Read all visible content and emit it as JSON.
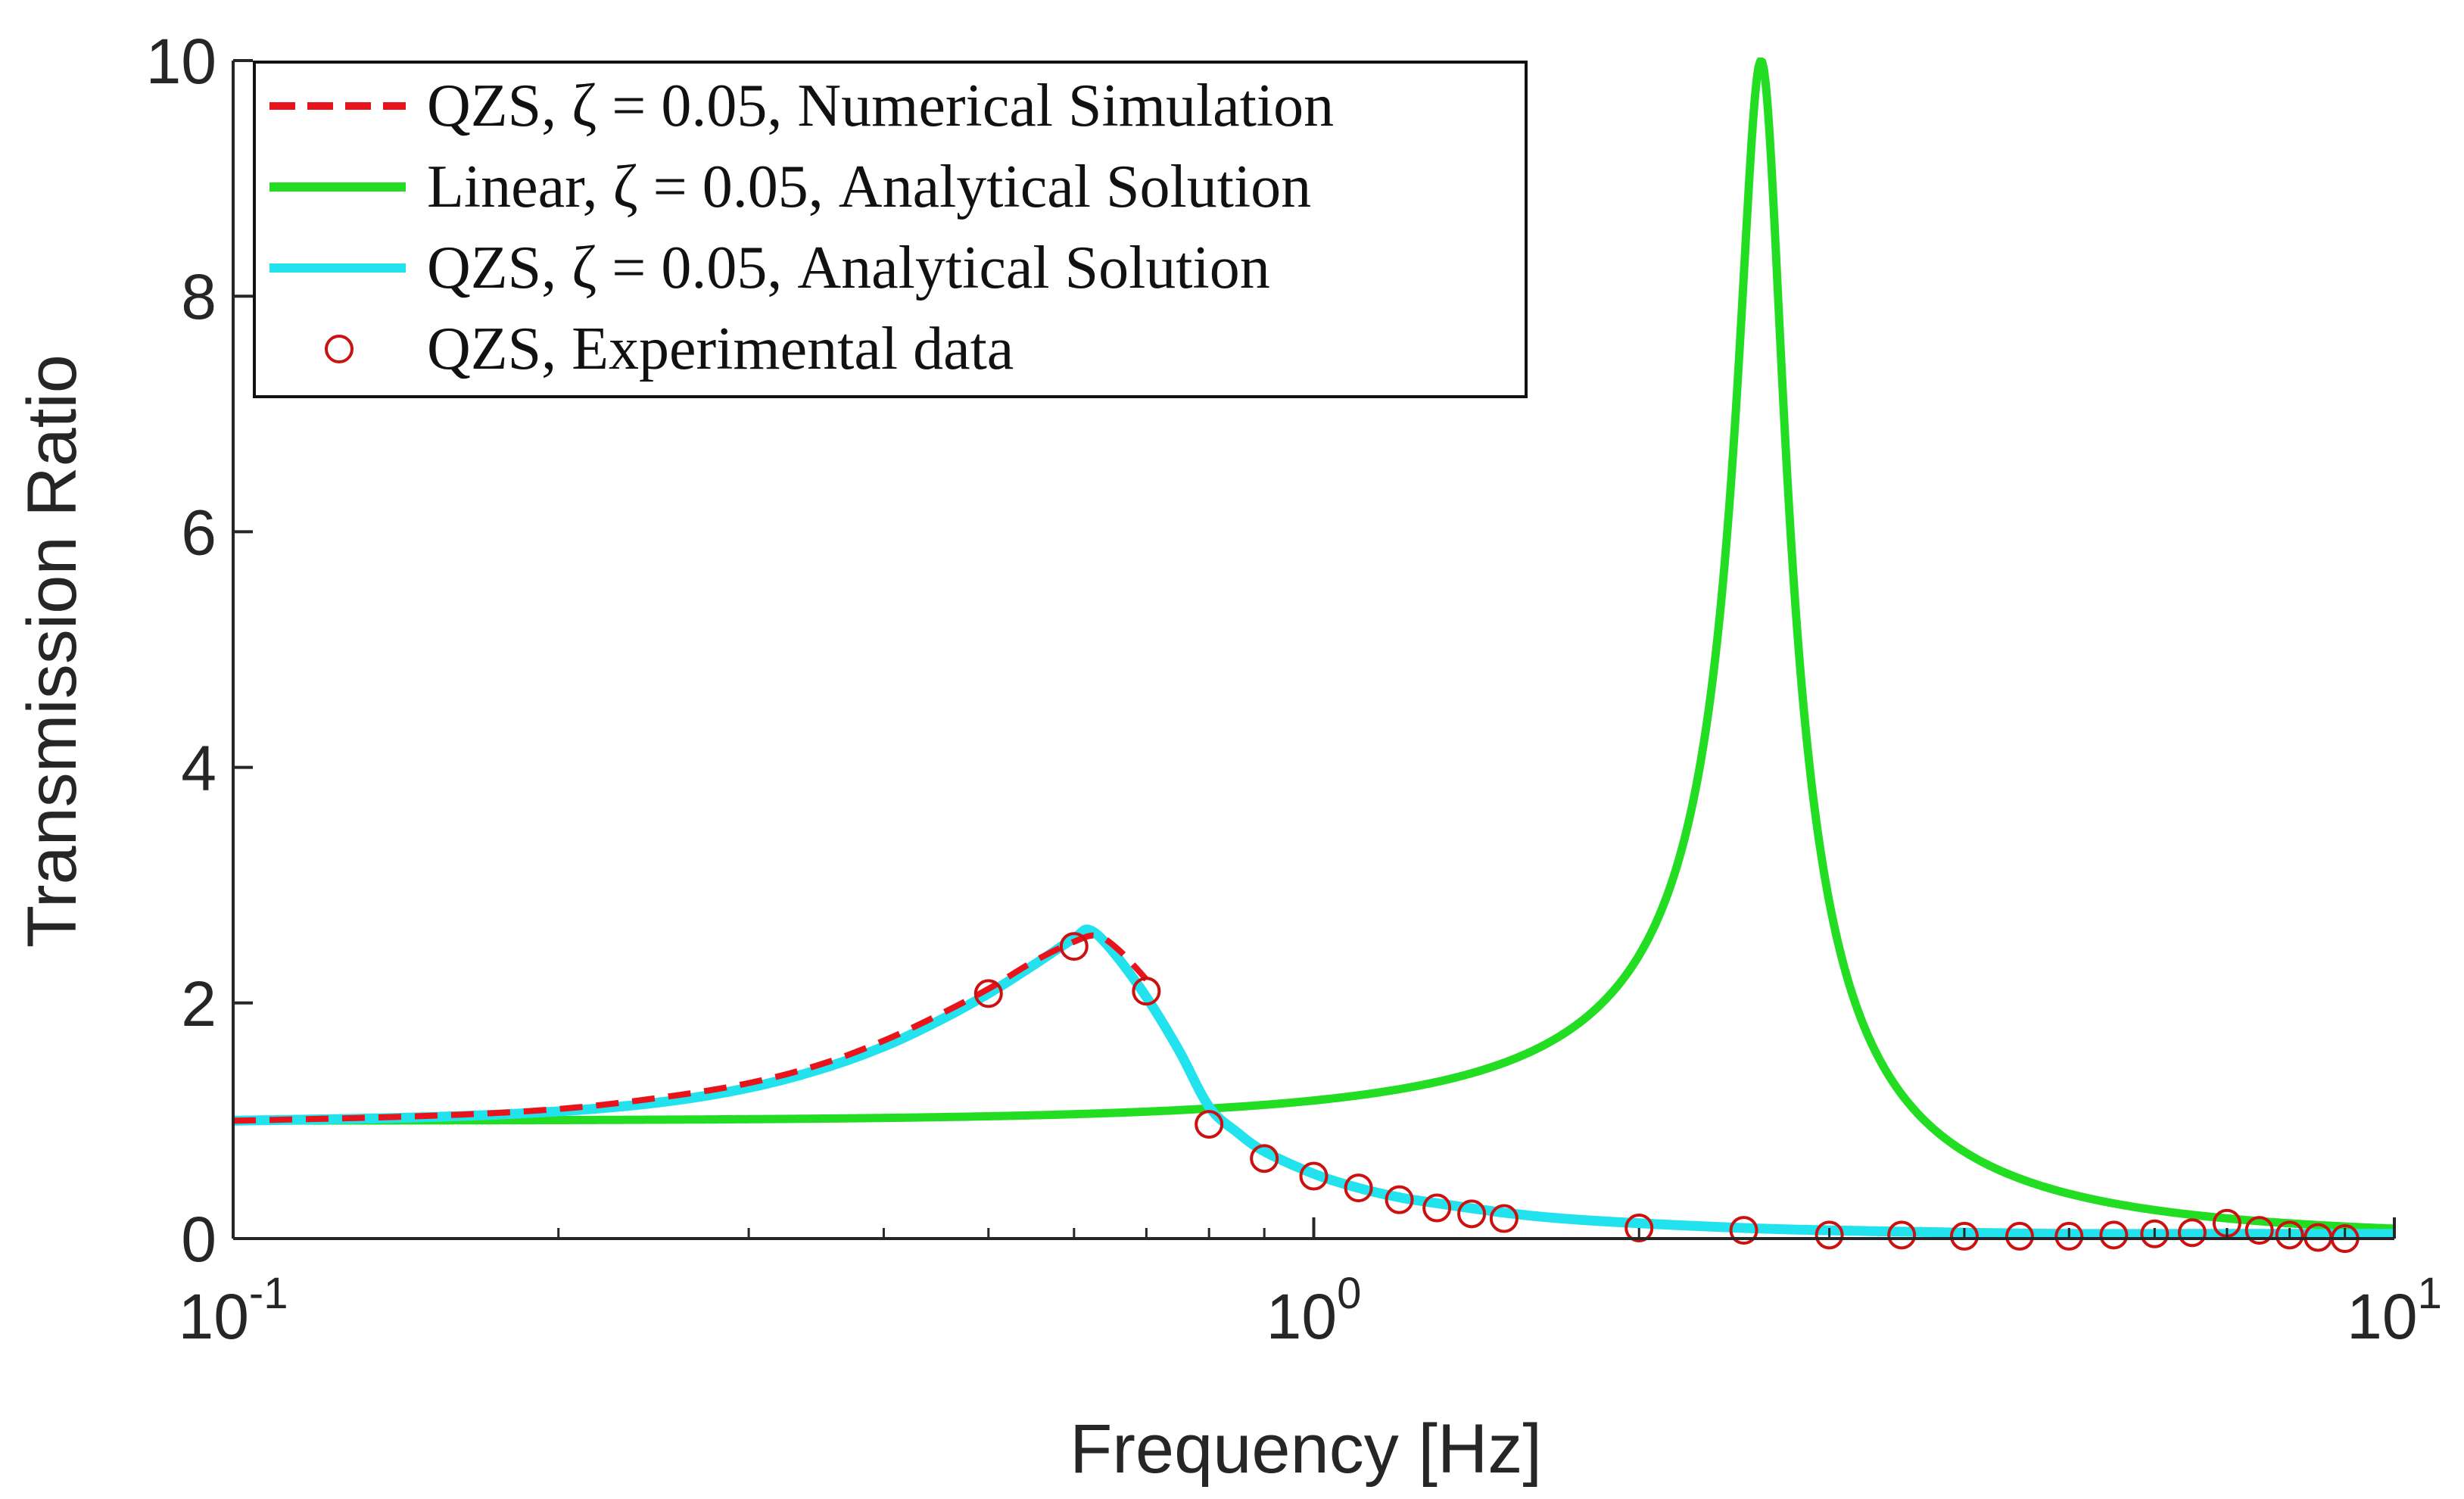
{
  "chart_data": {
    "type": "line",
    "title": "",
    "xlabel": "Frequency [Hz]",
    "ylabel": "Transmission Ratio",
    "xscale": "log",
    "xlim": [
      0.1,
      10
    ],
    "ylim": [
      0,
      10
    ],
    "y_ticks": [
      0,
      2,
      4,
      6,
      8,
      10
    ],
    "y_tick_labels": [
      "0",
      "2",
      "4",
      "6",
      "8",
      "10"
    ],
    "x_ticks": [
      0.1,
      1,
      10
    ],
    "x_tick_labels": [
      {
        "base": "10",
        "exp": "-1"
      },
      {
        "base": "10",
        "exp": "0"
      },
      {
        "base": "10",
        "exp": "1"
      }
    ],
    "grid": false,
    "legend_position": "top-left",
    "colors": {
      "numerical": "#e8141c",
      "linear": "#22dd22",
      "qzs_analytical": "#22e2ee",
      "experimental": "#cc1111",
      "axis": "#262626"
    },
    "legend": [
      {
        "id": "numerical",
        "label": "QZS, ζ = 0.05, Numerical Simulation",
        "style": "dashed"
      },
      {
        "id": "linear",
        "label": "Linear, ζ = 0.05, Analytical Solution",
        "style": "solid"
      },
      {
        "id": "qzs_analytical",
        "label": "QZS, ζ = 0.05, Analytical Solution",
        "style": "solid"
      },
      {
        "id": "experimental",
        "label": "QZS, Experimental data",
        "style": "marker"
      }
    ],
    "series": [
      {
        "id": "numerical",
        "name": "QZS, ζ = 0.05, Numerical Simulation",
        "x": [
          0.1,
          0.15,
          0.2,
          0.25,
          0.3,
          0.35,
          0.4,
          0.45,
          0.5,
          0.55,
          0.6,
          0.63,
          0.66,
          0.7
        ],
        "y": [
          1.0,
          1.04,
          1.1,
          1.2,
          1.32,
          1.48,
          1.68,
          1.9,
          2.12,
          2.35,
          2.52,
          2.57,
          2.45,
          2.2
        ]
      },
      {
        "id": "linear",
        "name": "Linear, ζ = 0.05, Analytical Solution",
        "natural_frequency_hz": 2.6,
        "damping_ratio": 0.05,
        "peak_value": 10.0
      },
      {
        "id": "qzs_analytical",
        "name": "QZS, ζ = 0.05, Analytical Solution",
        "x": [
          0.1,
          0.15,
          0.2,
          0.25,
          0.3,
          0.35,
          0.4,
          0.45,
          0.5,
          0.55,
          0.6,
          0.62,
          0.65,
          0.7,
          0.75,
          0.8,
          0.85,
          0.9,
          1.0,
          1.1,
          1.2,
          1.3,
          1.5,
          1.7,
          2.0,
          2.5,
          3.0,
          4.0,
          5.0,
          7.0,
          10.0
        ],
        "y": [
          1.0,
          1.03,
          1.08,
          1.16,
          1.28,
          1.44,
          1.63,
          1.85,
          2.08,
          2.32,
          2.55,
          2.62,
          2.45,
          2.05,
          1.6,
          1.12,
          0.9,
          0.74,
          0.55,
          0.43,
          0.35,
          0.3,
          0.22,
          0.17,
          0.13,
          0.09,
          0.07,
          0.05,
          0.04,
          0.04,
          0.04
        ]
      },
      {
        "id": "experimental",
        "name": "QZS, Experimental data",
        "x": [
          0.5,
          0.6,
          0.7,
          0.8,
          0.9,
          1.0,
          1.1,
          1.2,
          1.3,
          1.4,
          1.5,
          2.0,
          2.5,
          3.0,
          3.5,
          4.0,
          4.5,
          5.0,
          5.5,
          6.0,
          6.5,
          7.0,
          7.5,
          8.0,
          8.5,
          9.0
        ],
        "y": [
          2.08,
          2.48,
          2.1,
          0.97,
          0.68,
          0.53,
          0.43,
          0.33,
          0.26,
          0.21,
          0.17,
          0.09,
          0.07,
          0.03,
          0.03,
          0.02,
          0.02,
          0.02,
          0.03,
          0.04,
          0.05,
          0.13,
          0.07,
          0.03,
          0.01,
          0.0
        ]
      }
    ]
  }
}
